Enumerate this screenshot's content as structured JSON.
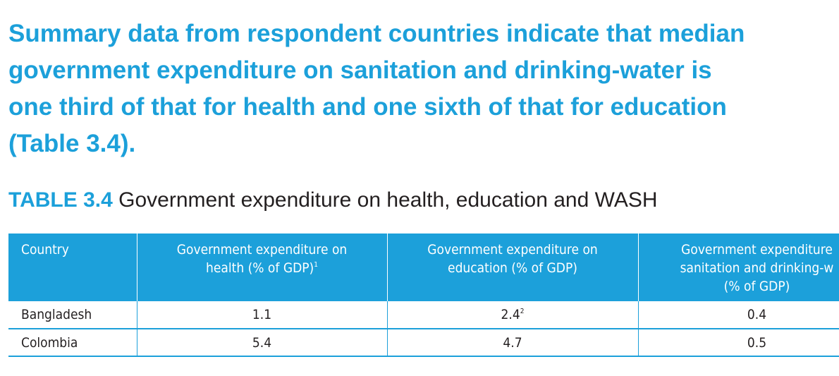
{
  "intro": {
    "lines": [
      "Summary data from respondent countries indicate that median",
      "government expenditure on sanitation and drinking-water is",
      "one third of that for health and one sixth of that for education",
      "(Table 3.4)."
    ]
  },
  "table": {
    "number": "TABLE 3.4",
    "title": "Government expenditure on health, education and WASH",
    "headers": [
      {
        "lines": [
          "Country"
        ]
      },
      {
        "lines": [
          "Government expenditure on",
          "health (% of GDP)"
        ],
        "footnote": "1"
      },
      {
        "lines": [
          "Government expenditure on",
          "education (% of GDP)"
        ]
      },
      {
        "lines": [
          "Government expenditure",
          "sanitation and drinking-w",
          "(% of GDP)"
        ]
      }
    ],
    "rows": [
      {
        "country": "Bangladesh",
        "health": "1.1",
        "education": "2.4",
        "education_footnote": "2",
        "wash": "0.4"
      },
      {
        "country": "Colombia",
        "health": "5.4",
        "education": "4.7",
        "wash": "0.5"
      }
    ]
  },
  "colors": {
    "accent": "#1ca0da",
    "text": "#231f20"
  }
}
